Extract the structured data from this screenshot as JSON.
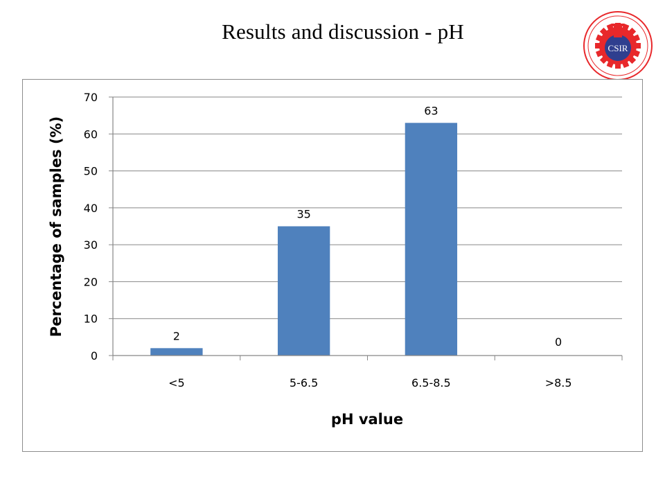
{
  "slide": {
    "title": "Results and discussion  - pH"
  },
  "logo": {
    "icon": "csir-emblem-icon",
    "text": "CSIR",
    "ring_text": "COUNCIL FOR SCIENTIFIC AND INDUSTRIAL RESEARCH",
    "colors": {
      "ring": "#e8282b",
      "center": "#2f3f8f",
      "flask": "#e8282b"
    }
  },
  "chart_data": {
    "type": "bar",
    "categories": [
      "<5",
      "5-6.5",
      "6.5-8.5",
      ">8.5"
    ],
    "values": [
      2,
      35,
      63,
      0
    ],
    "data_labels": [
      "2",
      "35",
      "63",
      "0"
    ],
    "xlabel": "pH value",
    "ylabel": "Percentage of samples (%)",
    "ylim": [
      0,
      70
    ],
    "yticks": [
      "0",
      "10",
      "20",
      "30",
      "40",
      "50",
      "60",
      "70"
    ],
    "grid": true,
    "legend": "none",
    "colors": {
      "bar": "#4f81bd",
      "grid": "#868686",
      "axis": "#868686"
    }
  }
}
